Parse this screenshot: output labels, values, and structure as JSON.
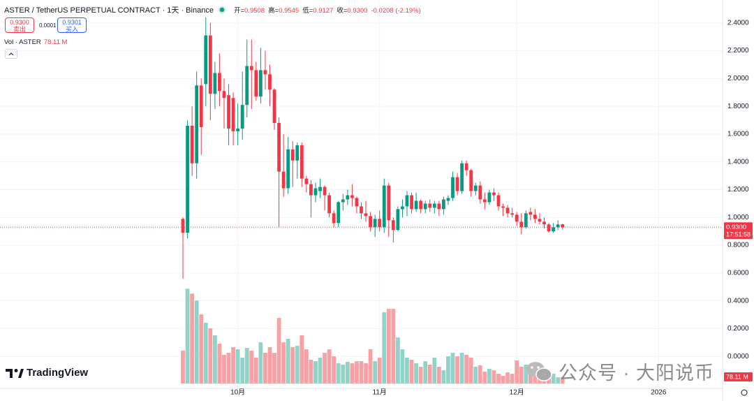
{
  "chart_data": {
    "type": "candlestick",
    "title": "ASTER / TetherUS PERPETUAL CONTRACT · 1天 · Binance",
    "ohlc_legend": [
      {
        "label": "开=",
        "value": "0.9508"
      },
      {
        "label": "高=",
        "value": "0.9545"
      },
      {
        "label": "低=",
        "value": "0.9127"
      },
      {
        "label": "收=",
        "value": "0.9300"
      }
    ],
    "change": "-0.0208 (-2.19%)",
    "volume_legend": {
      "label": "Vol · ASTER",
      "value": "78.11 M"
    },
    "open": [
      0.99,
      0.89,
      1.66,
      1.39,
      1.95,
      1.96,
      2.31,
      1.89,
      2.04,
      1.91,
      1.88,
      1.86,
      1.62,
      1.64,
      1.81,
      2.09,
      2.06,
      1.87,
      2.06,
      2.03,
      1.92,
      1.68,
      1.33,
      1.21,
      1.49,
      1.41,
      1.52,
      1.28,
      1.24,
      1.16,
      1.19,
      1.22,
      1.16,
      1.03,
      0.96,
      1.11,
      1.13,
      1.16,
      1.14,
      1.08,
      1.03,
      1.01,
      0.93,
      0.99,
      0.93,
      1.23,
      0.98,
      0.91,
      1.06,
      1.08,
      1.16,
      1.06,
      1.12,
      1.06,
      1.1,
      1.07,
      1.1,
      1.06,
      1.12,
      1.14,
      1.29,
      1.19,
      1.39,
      1.34,
      1.19,
      1.23,
      1.13,
      1.11,
      1.18,
      1.16,
      1.08,
      1.07,
      1.03,
      1.02,
      0.97,
      0.93,
      1.04,
      1.02,
      0.99,
      0.97,
      0.95,
      0.9,
      0.93,
      0.9508
    ],
    "high": [
      1.0,
      1.7,
      1.8,
      2.05,
      2.0,
      2.44,
      2.4,
      2.12,
      2.18,
      2.0,
      1.96,
      1.9,
      1.82,
      2.05,
      2.28,
      2.28,
      2.12,
      2.22,
      2.2,
      2.1,
      1.93,
      1.72,
      1.6,
      1.58,
      1.55,
      1.54,
      1.54,
      1.3,
      1.27,
      1.25,
      1.28,
      1.23,
      1.18,
      1.05,
      1.12,
      1.17,
      1.2,
      1.24,
      1.15,
      1.11,
      1.12,
      1.04,
      1.02,
      1.05,
      1.28,
      1.25,
      1.0,
      1.08,
      1.13,
      1.19,
      1.18,
      1.18,
      1.13,
      1.12,
      1.13,
      1.12,
      1.12,
      1.15,
      1.16,
      1.33,
      1.32,
      1.41,
      1.41,
      1.35,
      1.25,
      1.26,
      1.18,
      1.2,
      1.21,
      1.18,
      1.1,
      1.09,
      1.07,
      1.04,
      1.03,
      1.05,
      1.07,
      1.06,
      1.03,
      1.0,
      0.96,
      0.96,
      0.98,
      0.9545
    ],
    "low": [
      0.56,
      0.85,
      1.3,
      1.28,
      1.45,
      1.8,
      1.7,
      1.78,
      1.8,
      1.64,
      1.52,
      1.52,
      1.52,
      1.56,
      1.72,
      1.78,
      1.84,
      1.82,
      1.92,
      1.8,
      1.63,
      0.93,
      1.15,
      1.17,
      1.22,
      1.28,
      1.22,
      1.18,
      1.0,
      1.11,
      1.14,
      1.05,
      1.0,
      0.93,
      0.93,
      1.05,
      1.09,
      1.08,
      1.03,
      0.99,
      0.97,
      0.9,
      0.86,
      0.9,
      0.89,
      0.86,
      0.82,
      0.9,
      1.0,
      1.01,
      1.03,
      1.04,
      1.03,
      1.03,
      1.04,
      1.03,
      1.01,
      1.02,
      1.09,
      1.12,
      1.16,
      1.17,
      1.3,
      1.15,
      1.16,
      1.1,
      1.06,
      1.09,
      1.12,
      1.05,
      1.01,
      1.0,
      1.0,
      0.94,
      0.88,
      0.92,
      0.98,
      0.96,
      0.95,
      0.92,
      0.89,
      0.89,
      0.91,
      0.9127
    ],
    "close": [
      0.89,
      1.66,
      1.39,
      1.95,
      1.65,
      2.31,
      1.89,
      2.04,
      1.91,
      1.86,
      1.64,
      1.62,
      1.64,
      1.81,
      2.09,
      2.06,
      1.87,
      2.06,
      2.03,
      1.92,
      1.68,
      1.33,
      1.21,
      1.49,
      1.41,
      1.52,
      1.28,
      1.24,
      1.16,
      1.21,
      1.22,
      1.16,
      1.03,
      0.96,
      1.11,
      1.13,
      1.16,
      1.14,
      1.08,
      1.03,
      1.01,
      0.93,
      0.99,
      0.93,
      1.23,
      0.98,
      0.91,
      1.06,
      1.08,
      1.16,
      1.06,
      1.12,
      1.06,
      1.1,
      1.07,
      1.1,
      1.06,
      1.13,
      1.14,
      1.29,
      1.19,
      1.39,
      1.34,
      1.19,
      1.23,
      1.13,
      1.11,
      1.18,
      1.16,
      1.08,
      1.07,
      1.03,
      1.02,
      0.97,
      0.93,
      1.03,
      1.02,
      0.99,
      0.97,
      0.95,
      0.9,
      0.93,
      0.95,
      0.93
    ],
    "volume": [
      410,
      1180,
      1120,
      1035,
      860,
      757,
      687,
      600,
      495,
      357,
      383,
      452,
      426,
      322,
      443,
      409,
      322,
      513,
      383,
      452,
      383,
      817,
      513,
      557,
      452,
      470,
      600,
      426,
      296,
      278,
      322,
      383,
      426,
      339,
      252,
      235,
      270,
      252,
      278,
      278,
      252,
      426,
      278,
      322,
      887,
      930,
      930,
      574,
      426,
      322,
      296,
      252,
      209,
      278,
      235,
      322,
      209,
      165,
      339,
      383,
      339,
      383,
      357,
      322,
      209,
      226,
      148,
      183,
      165,
      122,
      96,
      139,
      122,
      287,
      209,
      235,
      165,
      122,
      122,
      113,
      165,
      122,
      78,
      78.11
    ],
    "up_color": "#089981",
    "down_color": "#f23645",
    "volume_up_color": "#93d2c9",
    "volume_down_color": "#f7a1a4",
    "xlim": [
      -40,
      118
    ],
    "xticks": [
      {
        "value": 12,
        "label": "10月"
      },
      {
        "value": 43,
        "label": "11月"
      },
      {
        "value": 73,
        "label": "12月"
      },
      {
        "value": 104,
        "label": "2026"
      }
    ],
    "ylim": [
      -0.23,
      2.565
    ],
    "yticks": [
      {
        "value": 2.4,
        "label": "2.4000"
      },
      {
        "value": 2.2,
        "label": "2.2000"
      },
      {
        "value": 2.0,
        "label": "2.0000"
      },
      {
        "value": 1.8,
        "label": "1.8000"
      },
      {
        "value": 1.6,
        "label": "1.6000"
      },
      {
        "value": 1.4,
        "label": "1.4000"
      },
      {
        "value": 1.2,
        "label": "1.2000"
      },
      {
        "value": 1.0,
        "label": "1.0000"
      },
      {
        "value": 0.8,
        "label": "0.8000"
      },
      {
        "value": 0.6,
        "label": "0.6000"
      },
      {
        "value": 0.4,
        "label": "0.4000"
      },
      {
        "value": 0.2,
        "label": "0.2000"
      },
      {
        "value": 0,
        "label": "0.0000"
      }
    ],
    "vlim": [
      0,
      1200
    ],
    "last_price": {
      "value": 0.93,
      "label": "0.9300"
    },
    "countdown": "17:51:58",
    "volume_tag": {
      "value": 78.11,
      "label": "78.11 M"
    },
    "grid": true
  },
  "trade_panel": {
    "sell": {
      "price": "0.9300",
      "label": "卖出"
    },
    "spread": "0.0001",
    "buy": {
      "price": "0.9301",
      "label": "买入"
    }
  },
  "logo": "TradingView",
  "watermark": "公众号 · 大阳说币"
}
